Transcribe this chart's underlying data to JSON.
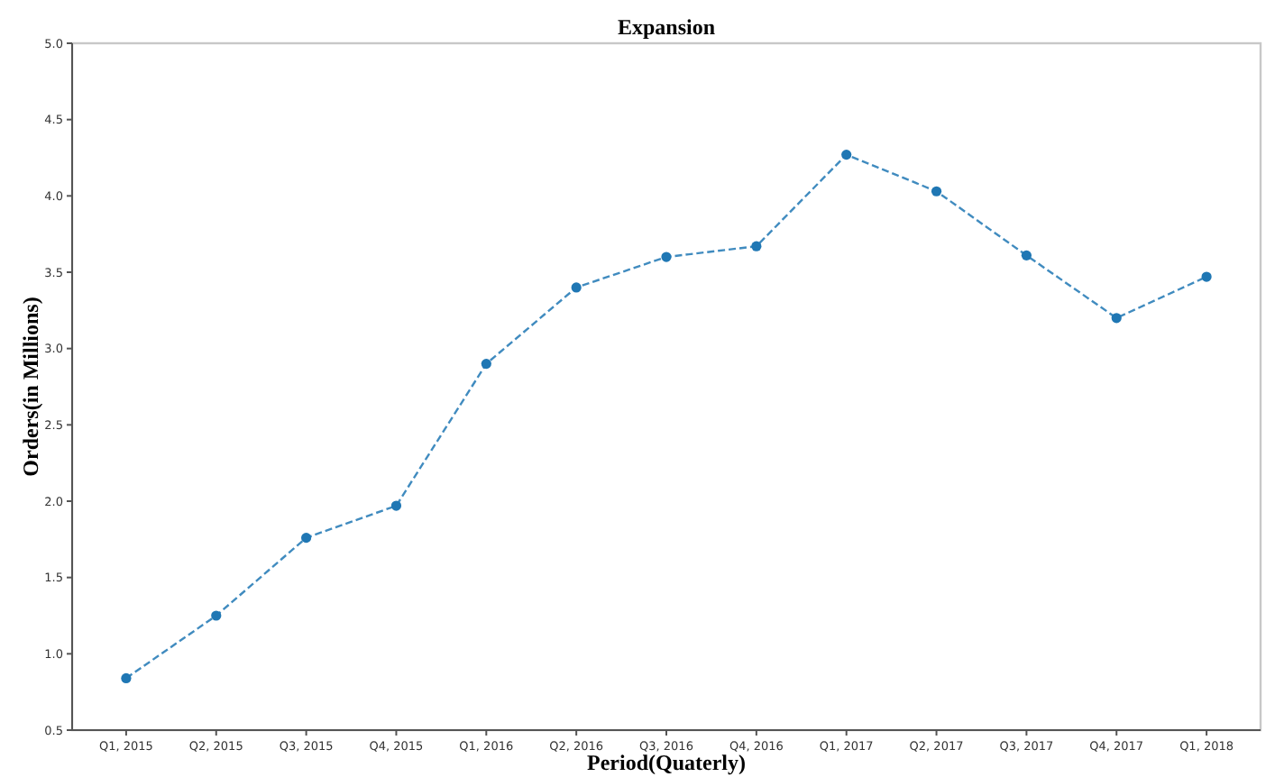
{
  "chart_data": {
    "type": "line",
    "title": "Expansion",
    "xlabel": "Period(Quaterly)",
    "ylabel": "Orders(in Millions)",
    "categories": [
      "Q1, 2015",
      "Q2, 2015",
      "Q3, 2015",
      "Q4, 2015",
      "Q1, 2016",
      "Q2, 2016",
      "Q3, 2016",
      "Q4, 2016",
      "Q1, 2017",
      "Q2, 2017",
      "Q3, 2017",
      "Q4, 2017",
      "Q1, 2018"
    ],
    "series": [
      {
        "color": "#1f77b4",
        "values": [
          0.84,
          1.25,
          1.76,
          1.97,
          2.9,
          3.4,
          3.6,
          3.67,
          4.27,
          4.03,
          3.61,
          3.2,
          3.47
        ]
      }
    ],
    "ylim": [
      0.5,
      5.0
    ],
    "yticks": [
      0.5,
      {
        "value": 1,
        "label": "1.0"
      },
      1.5,
      {
        "value": 2,
        "label": "2.0"
      },
      2.5,
      {
        "value": 3,
        "label": "3.0"
      },
      3.5,
      {
        "value": 4,
        "label": "4.0"
      },
      4.5,
      {
        "value": 5,
        "label": "5.0"
      }
    ],
    "grid": false,
    "marker": "circle",
    "line_style": "dashed"
  }
}
